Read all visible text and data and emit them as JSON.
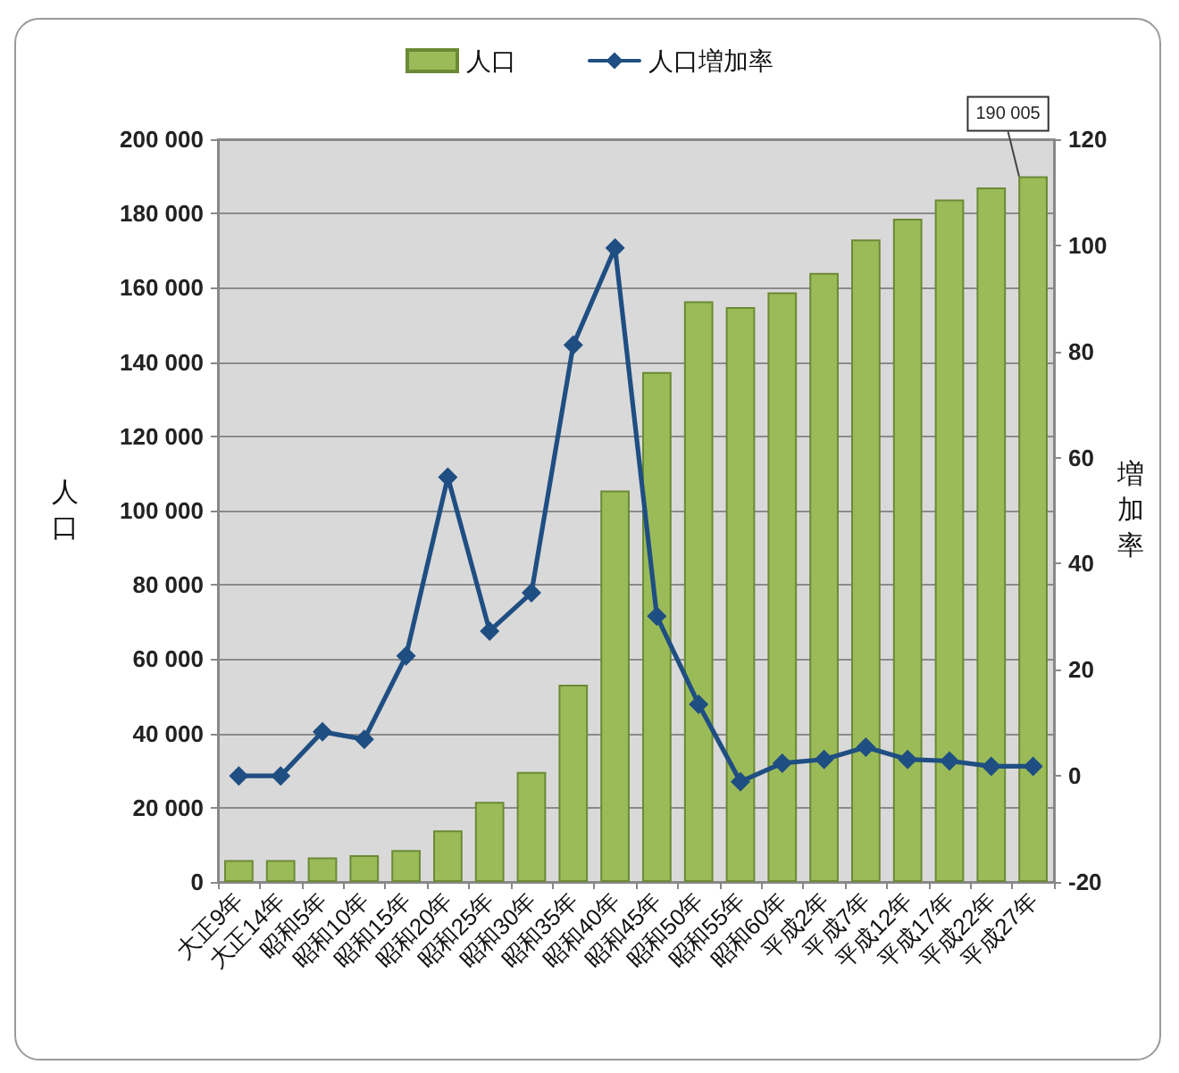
{
  "chart_data": {
    "type": "bar",
    "categories": [
      "大正9年",
      "大正14年",
      "昭和5年",
      "昭和10年",
      "昭和15年",
      "昭和20年",
      "昭和25年",
      "昭和30年",
      "昭和35年",
      "昭和40年",
      "昭和45年",
      "昭和50年",
      "昭和55年",
      "昭和60年",
      "平成2年",
      "平成7年",
      "平成12年",
      "平成17年",
      "平成22年",
      "平成27年"
    ],
    "series": [
      {
        "name": "人口",
        "color": "#9bbb59",
        "values": [
          5900,
          5900,
          6600,
          7200,
          8600,
          13900,
          21600,
          29600,
          53100,
          105400,
          137300,
          156400,
          154800,
          158800,
          164000,
          173000,
          178600,
          183800,
          187000,
          190005
        ],
        "value_labels": [
          null,
          null,
          null,
          null,
          null,
          null,
          null,
          null,
          null,
          null,
          null,
          null,
          null,
          null,
          null,
          null,
          null,
          null,
          null,
          "190 005"
        ]
      },
      {
        "name": "人口増加率",
        "type": "line",
        "axis": "y2",
        "color": "#1f4e82",
        "values": [
          0,
          0,
          8.3,
          6.9,
          22.6,
          56.3,
          27.3,
          34.5,
          81.2,
          99.5,
          30.1,
          13.5,
          -1.1,
          2.4,
          3.1,
          5.4,
          3.1,
          2.8,
          1.8,
          1.8
        ]
      }
    ],
    "ylabel": "人口",
    "y2label": "増加率",
    "ylim": [
      0,
      200000
    ],
    "yticks": [
      0,
      {
        "value": 20000,
        "label": "20 000"
      },
      {
        "value": 40000,
        "label": "40 000"
      },
      {
        "value": 60000,
        "label": "60 000"
      },
      {
        "value": 80000,
        "label": "80 000"
      },
      {
        "value": 100000,
        "label": "100 000"
      },
      {
        "value": 120000,
        "label": "120 000"
      },
      {
        "value": 140000,
        "label": "140 000"
      },
      {
        "value": 160000,
        "label": "160 000"
      },
      {
        "value": 180000,
        "label": "180 000"
      },
      {
        "value": 200000,
        "label": "200 000"
      }
    ],
    "y2lim": [
      -20,
      120
    ],
    "y2ticks": [
      -20,
      0,
      20,
      40,
      60,
      80,
      100,
      120
    ],
    "grid": "y",
    "legend": "top",
    "marker": "diamond",
    "line_style": "solid"
  }
}
